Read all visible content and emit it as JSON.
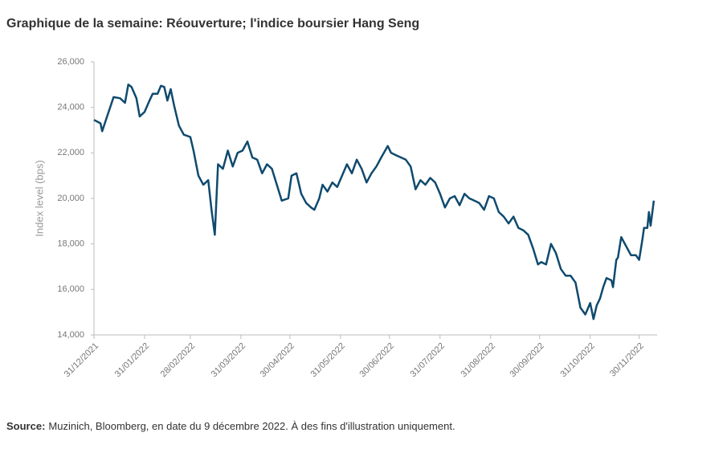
{
  "chart_data": {
    "type": "line",
    "title": "Graphique de la semaine: Réouverture; l'indice boursier Hang Seng",
    "y_label": "Index level (bps)",
    "source_label": "Source:",
    "source": "Muzinich, Bloomberg, en date du 9 décembre 2022. À des fins d'illustration uniquement.",
    "x": [
      "31/12/2021",
      "04/01/2022",
      "05/01/2022",
      "08/01/2022",
      "12/01/2022",
      "16/01/2022",
      "19/01/2022",
      "21/01/2022",
      "23/01/2022",
      "26/01/2022",
      "28/01/2022",
      "31/01/2022",
      "03/02/2022",
      "05/02/2022",
      "08/02/2022",
      "10/02/2022",
      "12/02/2022",
      "14/02/2022",
      "16/02/2022",
      "18/02/2022",
      "21/02/2022",
      "24/02/2022",
      "28/02/2022",
      "02/03/2022",
      "05/03/2022",
      "08/03/2022",
      "11/03/2022",
      "13/03/2022",
      "15/03/2022",
      "17/03/2022",
      "20/03/2022",
      "23/03/2022",
      "26/03/2022",
      "29/03/2022",
      "01/04/2022",
      "04/04/2022",
      "07/04/2022",
      "10/04/2022",
      "13/04/2022",
      "16/04/2022",
      "19/04/2022",
      "22/04/2022",
      "25/04/2022",
      "29/04/2022",
      "01/05/2022",
      "04/05/2022",
      "07/05/2022",
      "10/05/2022",
      "13/05/2022",
      "15/05/2022",
      "18/05/2022",
      "20/05/2022",
      "23/05/2022",
      "26/05/2022",
      "29/05/2022",
      "01/06/2022",
      "04/06/2022",
      "07/06/2022",
      "10/06/2022",
      "13/06/2022",
      "16/06/2022",
      "19/06/2022",
      "22/06/2022",
      "25/06/2022",
      "29/06/2022",
      "01/07/2022",
      "04/07/2022",
      "07/07/2022",
      "10/07/2022",
      "13/07/2022",
      "16/07/2022",
      "19/07/2022",
      "22/07/2022",
      "25/07/2022",
      "28/07/2022",
      "31/07/2022",
      "03/08/2022",
      "06/08/2022",
      "09/08/2022",
      "12/08/2022",
      "15/08/2022",
      "18/08/2022",
      "21/08/2022",
      "24/08/2022",
      "27/08/2022",
      "30/08/2022",
      "02/09/2022",
      "05/09/2022",
      "08/09/2022",
      "11/09/2022",
      "14/09/2022",
      "17/09/2022",
      "20/09/2022",
      "23/09/2022",
      "26/09/2022",
      "29/09/2022",
      "01/10/2022",
      "04/10/2022",
      "07/10/2022",
      "10/10/2022",
      "13/10/2022",
      "16/10/2022",
      "19/10/2022",
      "22/10/2022",
      "25/10/2022",
      "28/10/2022",
      "31/10/2022",
      "02/11/2022",
      "04/11/2022",
      "06/11/2022",
      "08/11/2022",
      "10/11/2022",
      "13/11/2022",
      "14/11/2022",
      "16/11/2022",
      "17/11/2022",
      "19/11/2022",
      "22/11/2022",
      "25/11/2022",
      "28/11/2022",
      "30/11/2022",
      "02/12/2022",
      "03/12/2022",
      "05/12/2022",
      "06/12/2022",
      "07/12/2022",
      "09/12/2022"
    ],
    "series": [
      {
        "name": "Hang Seng",
        "color": "#0f4a6e",
        "values": [
          23450,
          23300,
          22950,
          23600,
          24450,
          24400,
          24200,
          25000,
          24900,
          24400,
          23600,
          23800,
          24300,
          24600,
          24600,
          24950,
          24900,
          24300,
          24800,
          24100,
          23200,
          22800,
          22700,
          22100,
          21000,
          20600,
          20800,
          19500,
          18400,
          21500,
          21300,
          22100,
          21400,
          22000,
          22100,
          22500,
          21800,
          21700,
          21100,
          21500,
          21300,
          20600,
          19900,
          20000,
          21000,
          21100,
          20200,
          19800,
          19600,
          19500,
          20000,
          20600,
          20300,
          20700,
          20500,
          21000,
          21500,
          21100,
          21700,
          21300,
          20700,
          21100,
          21400,
          21800,
          22300,
          22000,
          21900,
          21800,
          21700,
          21400,
          20400,
          20800,
          20600,
          20900,
          20700,
          20200,
          19600,
          20000,
          20100,
          19700,
          20200,
          20000,
          19900,
          19800,
          19500,
          20100,
          20000,
          19400,
          19200,
          18900,
          19200,
          18700,
          18600,
          18400,
          17800,
          17100,
          17200,
          17100,
          18000,
          17600,
          16900,
          16600,
          16600,
          16300,
          15200,
          14900,
          15400,
          14700,
          15300,
          15600,
          16100,
          16500,
          16400,
          16100,
          17300,
          17400,
          18300,
          17900,
          17500,
          17500,
          17300,
          18200,
          18700,
          18700,
          19400,
          18800,
          19900
        ]
      }
    ],
    "xlim": [
      "31/12/2021",
      "11/12/2022"
    ],
    "xticks": [
      "31/12/2021",
      "31/01/2022",
      "28/02/2022",
      "31/03/2022",
      "30/04/2022",
      "31/05/2022",
      "30/06/2022",
      "31/07/2022",
      "31/08/2022",
      "30/09/2022",
      "31/10/2022",
      "30/11/2022"
    ],
    "ylim": [
      14000,
      26000
    ],
    "yticks": [
      {
        "value": 14000,
        "label": "14,000"
      },
      {
        "value": 16000,
        "label": "16,000"
      },
      {
        "value": 18000,
        "label": "18,000"
      },
      {
        "value": 20000,
        "label": "20,000"
      },
      {
        "value": 22000,
        "label": "22,000"
      },
      {
        "value": 24000,
        "label": "24,000"
      },
      {
        "value": 26000,
        "label": "26,000"
      }
    ]
  }
}
